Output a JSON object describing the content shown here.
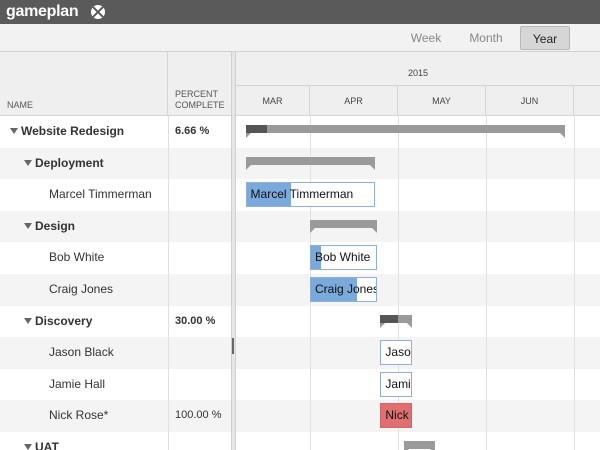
{
  "app": {
    "logo_text": "gameplan"
  },
  "toolbar": {
    "views": [
      "Week",
      "Month",
      "Year"
    ],
    "active_view": "Year"
  },
  "columns": {
    "name": "NAME",
    "percent_line1": "PERCENT",
    "percent_line2": "COMPLETE"
  },
  "timeline": {
    "year": "2015",
    "months": [
      "MAR",
      "APR",
      "MAY",
      "JUN"
    ]
  },
  "rows": [
    {
      "name": "Website Redesign",
      "level": 0,
      "group": true,
      "percent": "6.66 %"
    },
    {
      "name": "Deployment",
      "level": 1,
      "group": true,
      "percent": ""
    },
    {
      "name": "Marcel Timmerman",
      "level": 2,
      "group": false,
      "percent": ""
    },
    {
      "name": "Design",
      "level": 1,
      "group": true,
      "percent": ""
    },
    {
      "name": "Bob White",
      "level": 2,
      "group": false,
      "percent": ""
    },
    {
      "name": "Craig Jones",
      "level": 2,
      "group": false,
      "percent": ""
    },
    {
      "name": "Discovery",
      "level": 1,
      "group": true,
      "percent": "30.00 %"
    },
    {
      "name": "Jason Black",
      "level": 2,
      "group": false,
      "percent": ""
    },
    {
      "name": "Jamie Hall",
      "level": 2,
      "group": false,
      "percent": ""
    },
    {
      "name": "Nick Rose*",
      "level": 2,
      "group": false,
      "percent": "100.00 %"
    },
    {
      "name": "UAT",
      "level": 1,
      "group": true,
      "percent": ""
    }
  ],
  "bars": [
    {
      "row": 0,
      "type": "summary",
      "start": "2015-03-05",
      "end": "2015-06-28",
      "progress": 0.0666
    },
    {
      "row": 1,
      "type": "summary",
      "start": "2015-03-05",
      "end": "2015-04-23",
      "progress": 0
    },
    {
      "row": 2,
      "type": "task",
      "label": "Marcel Timmerman",
      "start": "2015-03-05",
      "end": "2015-04-23",
      "progress": 0.35,
      "color": "#7aa9dc"
    },
    {
      "row": 3,
      "type": "summary",
      "start": "2015-04-01",
      "end": "2015-04-24",
      "progress": 0
    },
    {
      "row": 4,
      "type": "task",
      "label": "Bob White",
      "start": "2015-04-01",
      "end": "2015-04-24",
      "progress": 0.15,
      "color": "#7aa9dc"
    },
    {
      "row": 5,
      "type": "task",
      "label": "Craig Jones",
      "start": "2015-04-01",
      "end": "2015-04-24",
      "progress": 0.7,
      "color": "#7aa9dc"
    },
    {
      "row": 6,
      "type": "summary",
      "start": "2015-04-25",
      "end": "2015-05-06",
      "progress": 0.3
    },
    {
      "row": 7,
      "type": "task",
      "label": "Jason Black",
      "start": "2015-04-25",
      "end": "2015-05-06",
      "progress": 0,
      "color": "#7aa9dc"
    },
    {
      "row": 8,
      "type": "task",
      "label": "Jamie Hall",
      "start": "2015-04-25",
      "end": "2015-05-06",
      "progress": 0,
      "color": "#7aa9dc"
    },
    {
      "row": 9,
      "type": "task",
      "label": "Nick",
      "start": "2015-04-25",
      "end": "2015-05-06",
      "progress": 1,
      "color": "#e07070"
    },
    {
      "row": 10,
      "type": "summary",
      "start": "2015-05-03",
      "end": "2015-05-14",
      "progress": 0
    }
  ],
  "colors": {
    "header_bg": "#5a5a5a",
    "task_fill": "#7aa9dc",
    "task_done_red": "#e07070",
    "summary": "#9a9a9a"
  }
}
